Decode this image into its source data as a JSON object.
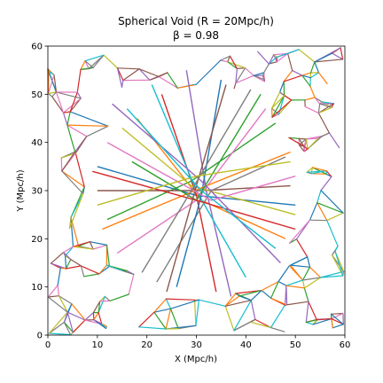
{
  "chart_data": {
    "type": "line",
    "title": "Spherical Void (R = 20Mpc/h)",
    "subtitle": "β =  0.98",
    "xlabel": "X (Mpc/h)",
    "ylabel": "Y (Mpc/h)",
    "xlim": [
      0,
      60
    ],
    "ylim": [
      0,
      60
    ],
    "xticks": [
      "0",
      "10",
      "20",
      "30",
      "40",
      "50",
      "60"
    ],
    "yticks": [
      "0",
      "10",
      "20",
      "30",
      "40",
      "50",
      "60"
    ],
    "grid": false,
    "void": {
      "center": [
        30,
        30
      ],
      "radius": 20
    },
    "palette": [
      "#1f77b4",
      "#ff7f0e",
      "#2ca02c",
      "#d62728",
      "#9467bd",
      "#8c564b",
      "#e377c2",
      "#7f7f7f",
      "#bcbd22",
      "#17becf"
    ],
    "series": [
      {
        "x": [
          10,
          30,
          50
        ],
        "y": [
          35,
          29,
          27
        ]
      },
      {
        "x": [
          18,
          31,
          48
        ],
        "y": [
          45,
          28,
          20
        ]
      },
      {
        "x": [
          12,
          29,
          46
        ],
        "y": [
          24,
          32,
          44
        ]
      },
      {
        "x": [
          23,
          30,
          34
        ],
        "y": [
          50,
          29,
          9
        ]
      },
      {
        "x": [
          28,
          32,
          37
        ],
        "y": [
          55,
          30,
          8
        ]
      },
      {
        "x": [
          10,
          31,
          49
        ],
        "y": [
          30,
          30,
          31
        ]
      },
      {
        "x": [
          14,
          30,
          44
        ],
        "y": [
          17,
          28,
          47
        ]
      },
      {
        "x": [
          22,
          33,
          48
        ],
        "y": [
          11,
          30,
          37
        ]
      },
      {
        "x": [
          15,
          29,
          50
        ],
        "y": [
          43,
          31,
          25
        ]
      },
      {
        "x": [
          21,
          30,
          40
        ],
        "y": [
          52,
          30,
          12
        ]
      },
      {
        "x": [
          26,
          31,
          35
        ],
        "y": [
          10,
          29,
          53
        ]
      },
      {
        "x": [
          11,
          32,
          49
        ],
        "y": [
          22,
          31,
          38
        ]
      },
      {
        "x": [
          17,
          30,
          43
        ],
        "y": [
          36,
          28,
          50
        ]
      },
      {
        "x": [
          9,
          30,
          50
        ],
        "y": [
          34,
          28,
          22
        ]
      },
      {
        "x": [
          13,
          31,
          47
        ],
        "y": [
          48,
          32,
          15
        ]
      },
      {
        "x": [
          24,
          30,
          36
        ],
        "y": [
          9,
          31,
          52
        ]
      },
      {
        "x": [
          12,
          33,
          50
        ],
        "y": [
          40,
          28,
          33
        ]
      },
      {
        "x": [
          19,
          29,
          41
        ],
        "y": [
          13,
          30,
          51
        ]
      },
      {
        "x": [
          10,
          30,
          49
        ],
        "y": [
          27,
          33,
          36
        ]
      },
      {
        "x": [
          16,
          31,
          46
        ],
        "y": [
          47,
          30,
          18
        ]
      }
    ]
  }
}
